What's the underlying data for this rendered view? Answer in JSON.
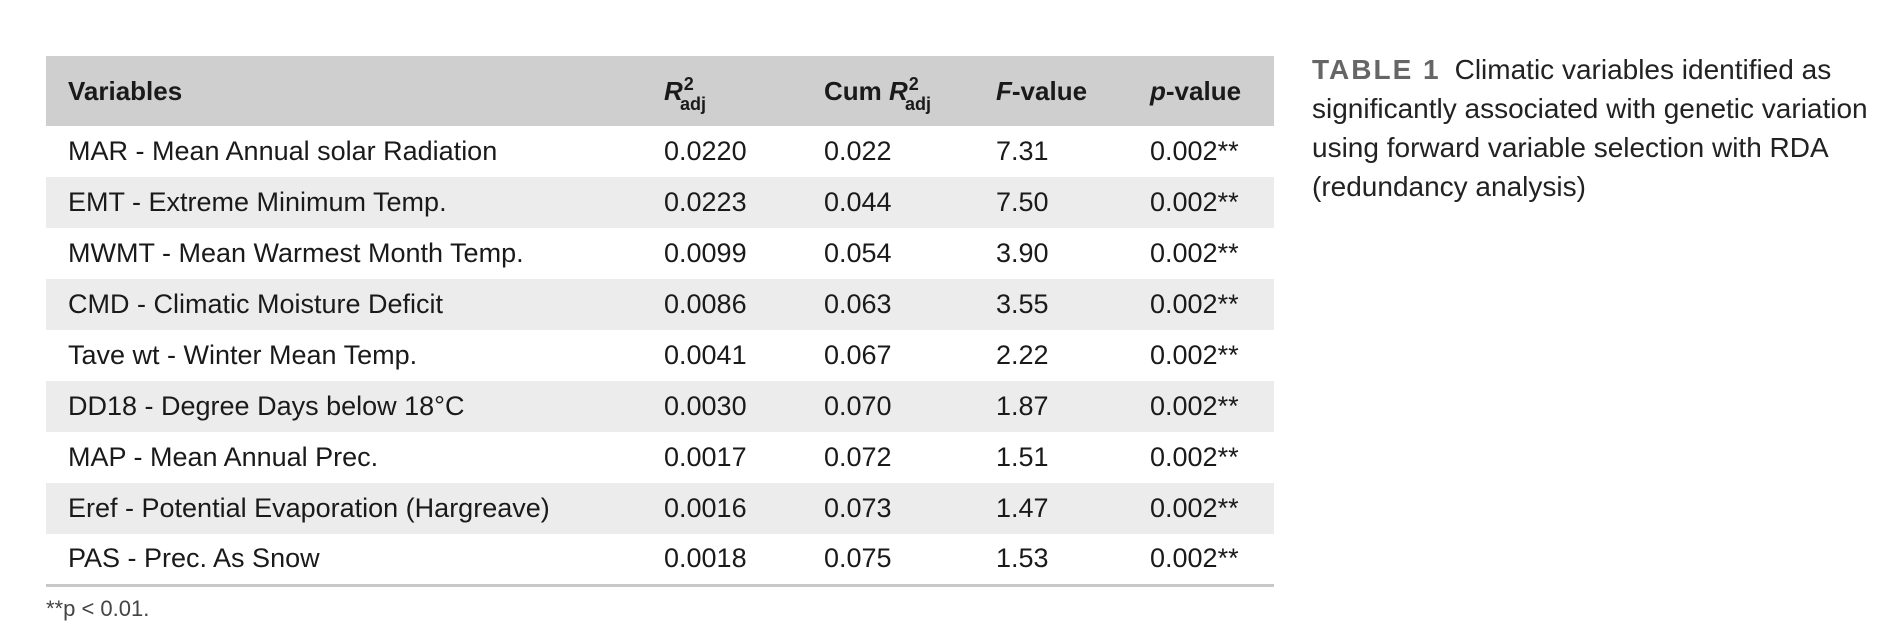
{
  "table": {
    "headers": {
      "variables": "Variables",
      "r_letter": "R",
      "r_sup": "2",
      "r_sub": "adj",
      "cum_prefix": "Cum ",
      "cum_r_letter": "R",
      "cum_r_sup": "2",
      "cum_r_sub": "adj",
      "f_italic": "F",
      "f_rest": "-value",
      "p_italic": "p",
      "p_rest": "-value"
    },
    "rows": [
      {
        "variable": "MAR - Mean Annual solar Radiation",
        "r2adj": "0.0220",
        "cum_r2adj": "0.022",
        "f_value": "7.31",
        "p_value": "0.002**"
      },
      {
        "variable": "EMT - Extreme Minimum Temp.",
        "r2adj": "0.0223",
        "cum_r2adj": "0.044",
        "f_value": "7.50",
        "p_value": "0.002**"
      },
      {
        "variable": "MWMT - Mean Warmest Month Temp.",
        "r2adj": "0.0099",
        "cum_r2adj": "0.054",
        "f_value": "3.90",
        "p_value": "0.002**"
      },
      {
        "variable": "CMD - Climatic Moisture Deficit",
        "r2adj": "0.0086",
        "cum_r2adj": "0.063",
        "f_value": "3.55",
        "p_value": "0.002**"
      },
      {
        "variable": "Tave wt - Winter Mean Temp.",
        "r2adj": "0.0041",
        "cum_r2adj": "0.067",
        "f_value": "2.22",
        "p_value": "0.002**"
      },
      {
        "variable": "DD18 - Degree Days below 18°C",
        "r2adj": "0.0030",
        "cum_r2adj": "0.070",
        "f_value": "1.87",
        "p_value": "0.002**"
      },
      {
        "variable": "MAP - Mean Annual Prec.",
        "r2adj": "0.0017",
        "cum_r2adj": "0.072",
        "f_value": "1.51",
        "p_value": "0.002**"
      },
      {
        "variable": "Eref - Potential Evaporation (Hargreave)",
        "r2adj": "0.0016",
        "cum_r2adj": "0.073",
        "f_value": "1.47",
        "p_value": "0.002**"
      },
      {
        "variable": "PAS - Prec. As Snow",
        "r2adj": "0.0018",
        "cum_r2adj": "0.075",
        "f_value": "1.53",
        "p_value": "0.002**"
      }
    ]
  },
  "caption": {
    "label": "TABLE 1",
    "text": "Climatic variables identified as significantly associated with genetic variation using forward variable selection with RDA (redundancy analysis)"
  },
  "footnote": {
    "text": "**p < 0.01."
  }
}
